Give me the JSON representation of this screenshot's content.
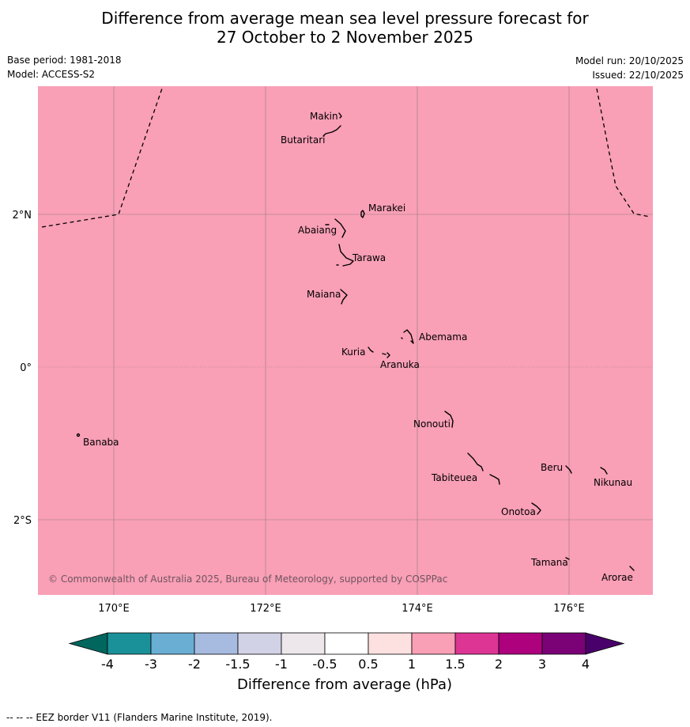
{
  "title": {
    "line1": "Difference from average mean sea level pressure forecast for",
    "line2": "27 October to 2 November 2025"
  },
  "info": {
    "base_period": "Base period: 1981-2018",
    "model": "Model: ACCESS-S2",
    "model_run": "Model run: 20/10/2025",
    "issued": "Issued: 22/10/2025"
  },
  "map": {
    "fill_color": "#f99fb6",
    "x_ticks": [
      "170°E",
      "172°E",
      "174°E",
      "176°E"
    ],
    "y_ticks": [
      "2°N",
      "0°",
      "2°S"
    ],
    "copyright": "© Commonwealth of Australia 2025, Bureau of Meteorology, supported by COSPPac",
    "islands": [
      {
        "name": "Makin"
      },
      {
        "name": "Butaritari"
      },
      {
        "name": "Marakei"
      },
      {
        "name": "Abaiang"
      },
      {
        "name": "Tarawa"
      },
      {
        "name": "Maiana"
      },
      {
        "name": "Abemama"
      },
      {
        "name": "Kuria"
      },
      {
        "name": "Aranuka"
      },
      {
        "name": "Nonouti"
      },
      {
        "name": "Banaba"
      },
      {
        "name": "Tabiteuea"
      },
      {
        "name": "Beru"
      },
      {
        "name": "Nikunau"
      },
      {
        "name": "Onotoa"
      },
      {
        "name": "Tamana"
      },
      {
        "name": "Arorae"
      }
    ]
  },
  "colorbar": {
    "ticks": [
      "-4",
      "-3",
      "-2",
      "-1.5",
      "-1",
      "-0.5",
      "0.5",
      "1",
      "1.5",
      "2",
      "3",
      "4"
    ],
    "colors": [
      "#1a9198",
      "#6aaed4",
      "#a7badf",
      "#d2d2e6",
      "#ede7ec",
      "#ffffff",
      "#fde0e0",
      "#f99fb6",
      "#dc3594",
      "#ad017e",
      "#7a0176"
    ],
    "under_color": "#01665d",
    "over_color": "#49006a",
    "label": "Difference from average (hPa)"
  },
  "footnote": "--  --  -- EEZ border V11 (Flanders Marine Institute, 2019)."
}
